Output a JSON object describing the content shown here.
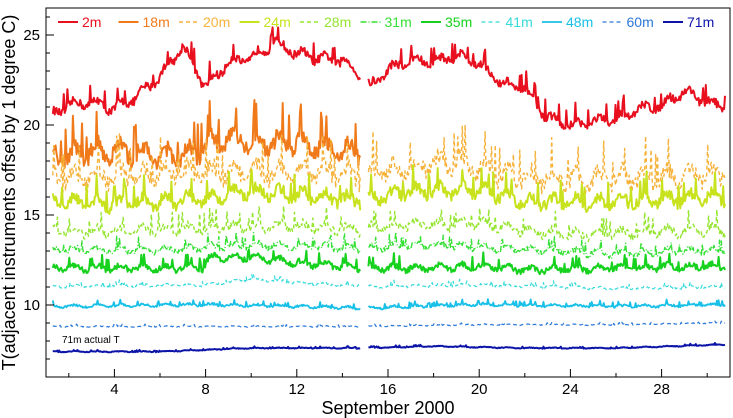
{
  "chart_data": {
    "type": "line",
    "xlabel": "September 2000",
    "ylabel": "T(adjacent instruments offset by 1 degree C)",
    "xlim": [
      1,
      31
    ],
    "ylim": [
      6,
      26.5
    ],
    "x_ticks": [
      4,
      8,
      12,
      16,
      20,
      24,
      28
    ],
    "y_ticks": [
      10,
      15,
      20,
      25
    ],
    "grid": false,
    "legend_position": "top",
    "data_gap": [
      14.8,
      15.1
    ],
    "annotation": "71m actual T",
    "series": [
      {
        "name": "2m",
        "color": "#e8101e",
        "dash": "solid",
        "width": 2.0,
        "points": [
          [
            1.3,
            20.5
          ],
          [
            2,
            21.0
          ],
          [
            3,
            21.2
          ],
          [
            4,
            20.8
          ],
          [
            5,
            21.5
          ],
          [
            6,
            22.6
          ],
          [
            7,
            24.3
          ],
          [
            8,
            22.0
          ],
          [
            9,
            23.4
          ],
          [
            10,
            23.6
          ],
          [
            11,
            24.5
          ],
          [
            12,
            23.9
          ],
          [
            13,
            23.6
          ],
          [
            14,
            23.5
          ],
          [
            14.7,
            22.8
          ],
          [
            15.2,
            22.0
          ],
          [
            16,
            23.0
          ],
          [
            17,
            23.5
          ],
          [
            18,
            23.4
          ],
          [
            19,
            23.8
          ],
          [
            20,
            23.3
          ],
          [
            21,
            22.2
          ],
          [
            22,
            21.9
          ],
          [
            23,
            20.3
          ],
          [
            24,
            19.9
          ],
          [
            25,
            20.1
          ],
          [
            26,
            20.2
          ],
          [
            27,
            20.8
          ],
          [
            28,
            21.0
          ],
          [
            29,
            21.8
          ],
          [
            30,
            21.2
          ],
          [
            30.8,
            20.8
          ]
        ],
        "noise": 0.45
      },
      {
        "name": "18m",
        "color": "#f07a1a",
        "dash": "solid",
        "width": 2.0,
        "end": 14.8,
        "points": [
          [
            1.3,
            18.0
          ],
          [
            3,
            18.4
          ],
          [
            5,
            18.3
          ],
          [
            7,
            18.0
          ],
          [
            8,
            18.6
          ],
          [
            9,
            19.2
          ],
          [
            10,
            18.8
          ],
          [
            12,
            18.9
          ],
          [
            14,
            18.4
          ],
          [
            14.8,
            18.4
          ]
        ],
        "noise": 0.9
      },
      {
        "name": "20m",
        "color": "#f6b23a",
        "dash": "dash",
        "width": 1.4,
        "points": [
          [
            1.3,
            16.8
          ],
          [
            4,
            17.0
          ],
          [
            8,
            17.2
          ],
          [
            12,
            17.2
          ],
          [
            14.8,
            17.0
          ],
          [
            16,
            17.3
          ],
          [
            19,
            17.8
          ],
          [
            21,
            17.0
          ],
          [
            24,
            16.8
          ],
          [
            28,
            16.9
          ],
          [
            30.8,
            17.1
          ]
        ],
        "noise": 0.9
      },
      {
        "name": "24m",
        "color": "#c8e21e",
        "dash": "solid",
        "width": 2.0,
        "points": [
          [
            1.3,
            15.6
          ],
          [
            4,
            15.5
          ],
          [
            8,
            15.8
          ],
          [
            10,
            16.2
          ],
          [
            12,
            16.0
          ],
          [
            14.8,
            15.7
          ],
          [
            17,
            16.2
          ],
          [
            20,
            16.3
          ],
          [
            22,
            15.6
          ],
          [
            26,
            15.6
          ],
          [
            30.8,
            15.9
          ]
        ],
        "noise": 0.6
      },
      {
        "name": "28m",
        "color": "#95e530",
        "dash": "dash",
        "width": 1.4,
        "points": [
          [
            1.3,
            14.0
          ],
          [
            4,
            14.0
          ],
          [
            8,
            14.2
          ],
          [
            12,
            14.3
          ],
          [
            14.8,
            14.1
          ],
          [
            17,
            14.4
          ],
          [
            20,
            14.4
          ],
          [
            24,
            13.8
          ],
          [
            28,
            14.0
          ],
          [
            30.8,
            14.1
          ]
        ],
        "noise": 0.45
      },
      {
        "name": "31m",
        "color": "#36e036",
        "dash": "dash2",
        "width": 1.4,
        "points": [
          [
            1.3,
            13.0
          ],
          [
            6,
            13.0
          ],
          [
            10,
            13.3
          ],
          [
            14.8,
            13.1
          ],
          [
            18,
            13.3
          ],
          [
            22,
            13.0
          ],
          [
            26,
            12.8
          ],
          [
            30.8,
            13.0
          ]
        ],
        "noise": 0.3
      },
      {
        "name": "35m",
        "color": "#16d21e",
        "dash": "solid",
        "width": 2.0,
        "points": [
          [
            1.3,
            12.0
          ],
          [
            4,
            12.0
          ],
          [
            7.9,
            12.0
          ],
          [
            8.2,
            12.6
          ],
          [
            10,
            12.6
          ],
          [
            12,
            12.3
          ],
          [
            14.8,
            12.0
          ],
          [
            18,
            12.0
          ],
          [
            20,
            12.1
          ],
          [
            22,
            11.9
          ],
          [
            26,
            12.0
          ],
          [
            30.8,
            12.1
          ]
        ],
        "noise": 0.3
      },
      {
        "name": "41m",
        "color": "#36dada",
        "dash": "dash",
        "width": 1.2,
        "points": [
          [
            1.3,
            11.0
          ],
          [
            8,
            11.1
          ],
          [
            10,
            11.4
          ],
          [
            14.8,
            11.0
          ],
          [
            20,
            11.1
          ],
          [
            26,
            10.9
          ],
          [
            30.8,
            11.0
          ]
        ],
        "noise": 0.12
      },
      {
        "name": "48m",
        "color": "#18c0e8",
        "dash": "solid",
        "width": 1.8,
        "points": [
          [
            1.3,
            9.9
          ],
          [
            8,
            10.0
          ],
          [
            12,
            9.9
          ],
          [
            14.8,
            9.8
          ],
          [
            20,
            10.0
          ],
          [
            26,
            9.9
          ],
          [
            30.8,
            10.0
          ]
        ],
        "noise": 0.12
      },
      {
        "name": "60m",
        "color": "#2c78d8",
        "dash": "dash",
        "width": 1.2,
        "points": [
          [
            1.3,
            8.8
          ],
          [
            8,
            8.8
          ],
          [
            14.8,
            8.8
          ],
          [
            20,
            8.9
          ],
          [
            26,
            8.9
          ],
          [
            30.8,
            9.0
          ]
        ],
        "noise": 0.05
      },
      {
        "name": "71m",
        "color": "#0c14a8",
        "dash": "solid",
        "width": 2.0,
        "points": [
          [
            1.3,
            7.4
          ],
          [
            6,
            7.4
          ],
          [
            10,
            7.6
          ],
          [
            14.8,
            7.6
          ],
          [
            18,
            7.7
          ],
          [
            22,
            7.6
          ],
          [
            26,
            7.6
          ],
          [
            30.8,
            7.8
          ]
        ],
        "noise": 0.04
      }
    ]
  }
}
